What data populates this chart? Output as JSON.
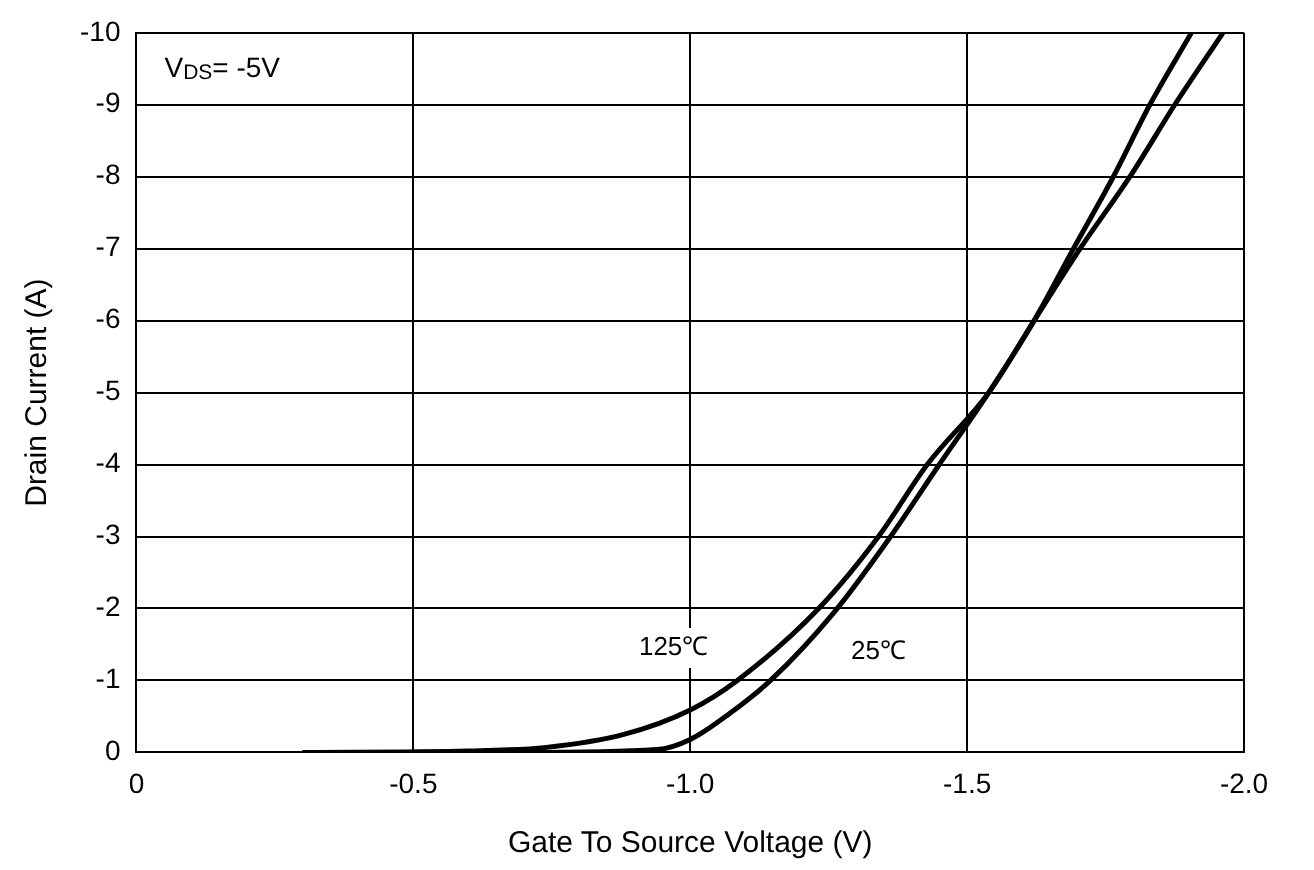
{
  "chart_data": {
    "type": "line",
    "xlabel": "Gate To Source Voltage (V)",
    "ylabel": "Drain Current (A)",
    "annotations": [
      "V$_{DS}$= -5V"
    ],
    "xlim": [
      0,
      -2
    ],
    "xticks": [
      0,
      {
        "value": -0.5,
        "label": "-0.5"
      },
      {
        "value": -1,
        "label": "-1.0"
      },
      {
        "value": -1.5,
        "label": "-1.5"
      },
      {
        "value": -2,
        "label": "-2.0"
      }
    ],
    "ylim": [
      0,
      -10
    ],
    "yticks": [
      0,
      -1,
      -2,
      -3,
      -4,
      -5,
      -6,
      -7,
      -8,
      -9,
      -10
    ],
    "grid": true,
    "legend": false,
    "marker": "none",
    "line_style": "solid",
    "series": [
      {
        "name": "125℃",
        "color": "#000000",
        "x": [
          -0.3,
          -0.6,
          -0.74,
          -0.88,
          -1.0,
          -1.085,
          -1.232,
          -1.34,
          -1.428,
          -1.539,
          -1.621,
          -1.704,
          -1.794,
          -1.875,
          -1.962
        ],
        "values": [
          0,
          -0.02,
          -0.07,
          -0.25,
          -0.59,
          -1,
          -2,
          -3,
          -4,
          -5,
          -6,
          -7,
          -8,
          -9,
          -10
        ]
      },
      {
        "name": "25℃",
        "color": "#000000",
        "x": [
          -0.3,
          -0.7,
          -0.94,
          -1.0,
          -1.071,
          -1.145,
          -1.259,
          -1.36,
          -1.447,
          -1.539,
          -1.621,
          -1.692,
          -1.764,
          -1.83,
          -1.905
        ],
        "values": [
          0,
          0,
          -0.04,
          -0.18,
          -0.54,
          -1,
          -1.94,
          -2.98,
          -3.97,
          -5,
          -6,
          -7,
          -8,
          -9,
          -10
        ]
      }
    ]
  }
}
